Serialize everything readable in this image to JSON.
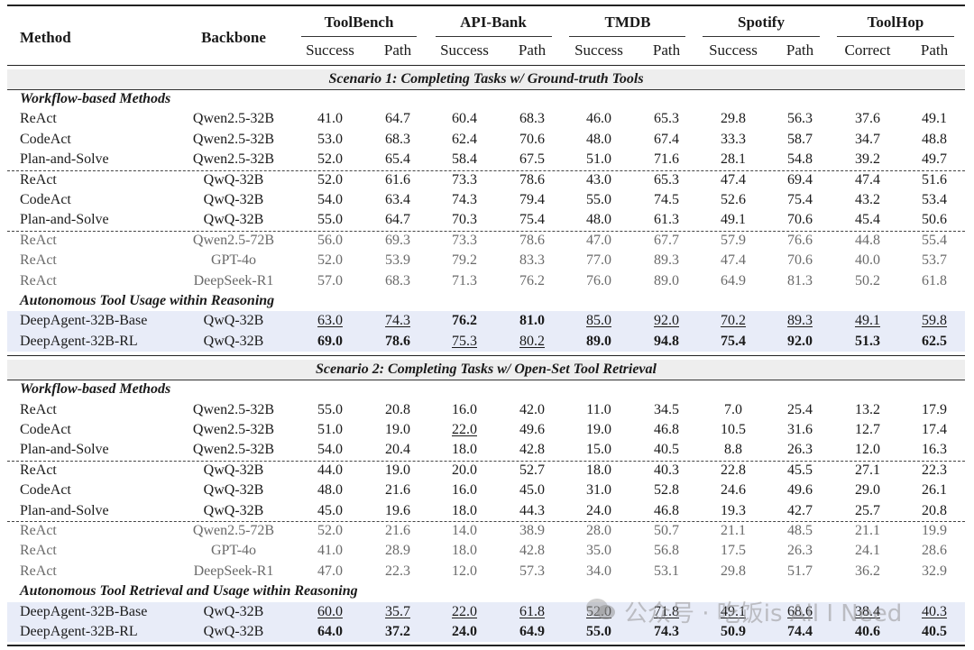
{
  "header": {
    "method": "Method",
    "backbone": "Backbone",
    "benchmarks": [
      {
        "name": "ToolBench",
        "metrics": [
          "Success",
          "Path"
        ]
      },
      {
        "name": "API-Bank",
        "metrics": [
          "Success",
          "Path"
        ]
      },
      {
        "name": "TMDB",
        "metrics": [
          "Success",
          "Path"
        ]
      },
      {
        "name": "Spotify",
        "metrics": [
          "Success",
          "Path"
        ]
      },
      {
        "name": "ToolHop",
        "metrics": [
          "Correct",
          "Path"
        ]
      }
    ]
  },
  "scenario1": {
    "title": "Scenario 1: Completing Tasks w/ Ground-truth Tools",
    "workflow_label": "Workflow-based Methods",
    "groups": [
      [
        {
          "method": "ReAct",
          "backbone": "Qwen2.5-32B",
          "values": [
            "41.0",
            "64.7",
            "60.4",
            "68.3",
            "46.0",
            "65.3",
            "29.8",
            "56.3",
            "37.6",
            "49.1"
          ]
        },
        {
          "method": "CodeAct",
          "backbone": "Qwen2.5-32B",
          "values": [
            "53.0",
            "68.3",
            "62.4",
            "70.6",
            "48.0",
            "67.4",
            "33.3",
            "58.7",
            "34.7",
            "48.8"
          ]
        },
        {
          "method": "Plan-and-Solve",
          "backbone": "Qwen2.5-32B",
          "values": [
            "52.0",
            "65.4",
            "58.4",
            "67.5",
            "51.0",
            "71.6",
            "28.1",
            "54.8",
            "39.2",
            "49.7"
          ]
        }
      ],
      [
        {
          "method": "ReAct",
          "backbone": "QwQ-32B",
          "values": [
            "52.0",
            "61.6",
            "73.3",
            "78.6",
            "43.0",
            "65.3",
            "47.4",
            "69.4",
            "47.4",
            "51.6"
          ]
        },
        {
          "method": "CodeAct",
          "backbone": "QwQ-32B",
          "values": [
            "54.0",
            "63.4",
            "74.3",
            "79.4",
            "55.0",
            "74.5",
            "52.6",
            "75.4",
            "43.2",
            "53.4"
          ]
        },
        {
          "method": "Plan-and-Solve",
          "backbone": "QwQ-32B",
          "values": [
            "55.0",
            "64.7",
            "70.3",
            "75.4",
            "48.0",
            "61.3",
            "49.1",
            "70.6",
            "45.4",
            "50.6"
          ]
        }
      ],
      [
        {
          "method": "ReAct",
          "backbone": "Qwen2.5-72B",
          "grey": true,
          "values": [
            "56.0",
            "69.3",
            "73.3",
            "78.6",
            "47.0",
            "67.7",
            "57.9",
            "76.6",
            "44.8",
            "55.4"
          ]
        },
        {
          "method": "ReAct",
          "backbone": "GPT-4o",
          "grey": true,
          "values": [
            "52.0",
            "53.9",
            "79.2",
            "83.3",
            "77.0",
            "89.3",
            "47.4",
            "70.6",
            "40.0",
            "53.7"
          ]
        },
        {
          "method": "ReAct",
          "backbone": "DeepSeek-R1",
          "grey": true,
          "values": [
            "57.0",
            "68.3",
            "71.3",
            "76.2",
            "76.0",
            "89.0",
            "64.9",
            "81.3",
            "50.2",
            "61.8"
          ]
        }
      ]
    ],
    "autonomous_label": "Autonomous Tool Usage within Reasoning",
    "ours": [
      {
        "method": "DeepAgent-32B-Base",
        "backbone": "QwQ-32B",
        "values": [
          "63.0",
          "74.3",
          "76.2",
          "81.0",
          "85.0",
          "92.0",
          "70.2",
          "89.3",
          "49.1",
          "59.8"
        ],
        "styles": [
          "u",
          "u",
          "b",
          "b",
          "u",
          "u",
          "u",
          "u",
          "u",
          "u"
        ]
      },
      {
        "method": "DeepAgent-32B-RL",
        "backbone": "QwQ-32B",
        "values": [
          "69.0",
          "78.6",
          "75.3",
          "80.2",
          "89.0",
          "94.8",
          "75.4",
          "92.0",
          "51.3",
          "62.5"
        ],
        "styles": [
          "b",
          "b",
          "u",
          "u",
          "b",
          "b",
          "b",
          "b",
          "b",
          "b"
        ]
      }
    ]
  },
  "scenario2": {
    "title": "Scenario 2: Completing Tasks w/ Open-Set Tool Retrieval",
    "workflow_label": "Workflow-based Methods",
    "groups": [
      [
        {
          "method": "ReAct",
          "backbone": "Qwen2.5-32B",
          "values": [
            "55.0",
            "20.8",
            "16.0",
            "42.0",
            "11.0",
            "34.5",
            "7.0",
            "25.4",
            "13.2",
            "17.9"
          ]
        },
        {
          "method": "CodeAct",
          "backbone": "Qwen2.5-32B",
          "values": [
            "51.0",
            "19.0",
            "22.0",
            "49.6",
            "19.0",
            "46.8",
            "10.5",
            "31.6",
            "12.7",
            "17.4"
          ],
          "styles": [
            "",
            "",
            "u",
            "",
            "",
            "",
            "",
            "",
            "",
            ""
          ]
        },
        {
          "method": "Plan-and-Solve",
          "backbone": "Qwen2.5-32B",
          "values": [
            "54.0",
            "20.4",
            "18.0",
            "42.8",
            "15.0",
            "40.5",
            "8.8",
            "26.3",
            "12.0",
            "16.3"
          ]
        }
      ],
      [
        {
          "method": "ReAct",
          "backbone": "QwQ-32B",
          "values": [
            "44.0",
            "19.0",
            "20.0",
            "52.7",
            "18.0",
            "40.3",
            "22.8",
            "45.5",
            "27.1",
            "22.3"
          ]
        },
        {
          "method": "CodeAct",
          "backbone": "QwQ-32B",
          "values": [
            "48.0",
            "21.6",
            "16.0",
            "45.0",
            "31.0",
            "52.8",
            "24.6",
            "49.6",
            "29.0",
            "26.1"
          ]
        },
        {
          "method": "Plan-and-Solve",
          "backbone": "QwQ-32B",
          "values": [
            "45.0",
            "19.6",
            "18.0",
            "44.3",
            "24.0",
            "46.8",
            "19.3",
            "42.7",
            "25.7",
            "20.8"
          ]
        }
      ],
      [
        {
          "method": "ReAct",
          "backbone": "Qwen2.5-72B",
          "grey": true,
          "values": [
            "52.0",
            "21.6",
            "14.0",
            "38.9",
            "28.0",
            "50.7",
            "21.1",
            "48.5",
            "21.1",
            "19.9"
          ]
        },
        {
          "method": "ReAct",
          "backbone": "GPT-4o",
          "grey": true,
          "values": [
            "41.0",
            "28.9",
            "18.0",
            "42.8",
            "35.0",
            "56.8",
            "17.5",
            "26.3",
            "24.1",
            "28.6"
          ]
        },
        {
          "method": "ReAct",
          "backbone": "DeepSeek-R1",
          "grey": true,
          "values": [
            "47.0",
            "22.3",
            "12.0",
            "57.3",
            "34.0",
            "53.1",
            "29.8",
            "51.7",
            "36.2",
            "32.9"
          ]
        }
      ]
    ],
    "autonomous_label": "Autonomous Tool Retrieval and Usage within Reasoning",
    "ours": [
      {
        "method": "DeepAgent-32B-Base",
        "backbone": "QwQ-32B",
        "values": [
          "60.0",
          "35.7",
          "22.0",
          "61.8",
          "52.0",
          "71.8",
          "49.1",
          "68.6",
          "38.4",
          "40.3"
        ],
        "styles": [
          "u",
          "u",
          "u",
          "u",
          "u",
          "u",
          "u",
          "u",
          "u",
          "u"
        ]
      },
      {
        "method": "DeepAgent-32B-RL",
        "backbone": "QwQ-32B",
        "values": [
          "64.0",
          "37.2",
          "24.0",
          "64.9",
          "55.0",
          "74.3",
          "50.9",
          "74.4",
          "40.6",
          "40.5"
        ],
        "styles": [
          "b",
          "b",
          "b",
          "b",
          "b",
          "b",
          "b",
          "b",
          "b",
          "b"
        ]
      }
    ]
  },
  "watermark": "公众号 · 吃饭is All I Need"
}
